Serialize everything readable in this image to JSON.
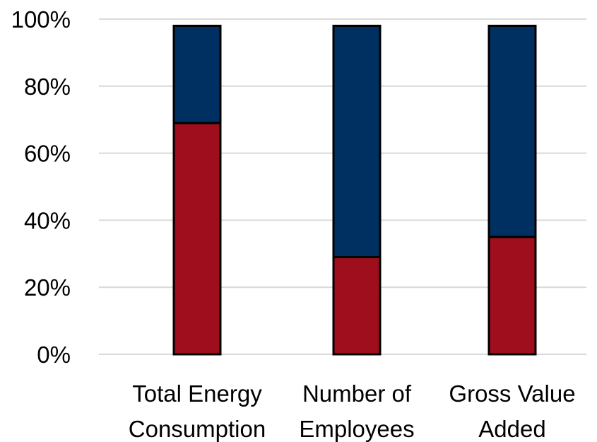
{
  "chart_data": {
    "type": "bar",
    "stacked": true,
    "categories": [
      [
        "Total Energy",
        "Consumption"
      ],
      [
        "Number of",
        "Employees"
      ],
      [
        "Gross Value",
        "Added"
      ]
    ],
    "series": [
      {
        "color": "#9e0e1c",
        "values": [
          69,
          29,
          35
        ]
      },
      {
        "color": "#002f61",
        "values": [
          29,
          69,
          63
        ]
      }
    ],
    "yticks": [
      "0%",
      "20%",
      "40%",
      "60%",
      "80%",
      "100%"
    ],
    "ylim": [
      0,
      100
    ],
    "grid": true,
    "legend": "none",
    "title": "",
    "xlabel": "",
    "ylabel": ""
  }
}
